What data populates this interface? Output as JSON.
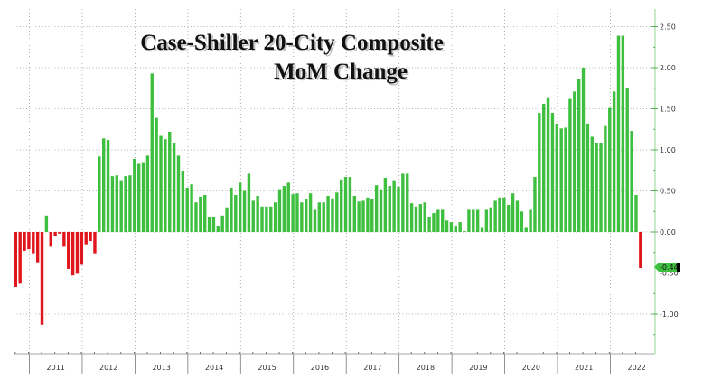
{
  "chart_data": {
    "type": "bar",
    "title": "Case-Shiller 20-City Composite",
    "subtitle": "MoM Change",
    "xlabel": "",
    "ylabel": "",
    "ylim": [
      -1.45,
      2.7
    ],
    "y_ticks": [
      "2.50",
      "2.00",
      "1.50",
      "1.00",
      "0.50",
      "0.00",
      "-0.50",
      "-1.00"
    ],
    "y_tick_values": [
      2.5,
      2.0,
      1.5,
      1.0,
      0.5,
      0.0,
      -0.5,
      -1.0
    ],
    "x_year_labels": [
      "2011",
      "2012",
      "2013",
      "2014",
      "2015",
      "2016",
      "2017",
      "2018",
      "2019",
      "2020",
      "2021",
      "2022"
    ],
    "grid": true,
    "axis_position": "right",
    "last_value_label": "-0.44",
    "colors": {
      "positive": "#3fbf3f",
      "negative": "#e0161d",
      "axis": "#b9e6b9",
      "grid": "#9a9a9a",
      "last_value_tag": "#3fbf3f"
    },
    "values": [
      -0.67,
      -0.63,
      -0.23,
      -0.21,
      -0.26,
      -0.37,
      -1.13,
      0.2,
      -0.18,
      -0.05,
      -0.02,
      -0.18,
      -0.45,
      -0.53,
      -0.51,
      -0.4,
      -0.15,
      -0.11,
      -0.26,
      0.92,
      1.14,
      1.12,
      0.68,
      0.69,
      0.62,
      0.68,
      0.69,
      0.89,
      0.83,
      0.84,
      0.93,
      1.93,
      1.39,
      1.17,
      1.13,
      1.22,
      1.08,
      0.93,
      0.74,
      0.54,
      0.58,
      0.36,
      0.43,
      0.45,
      0.18,
      0.18,
      0.07,
      0.2,
      0.3,
      0.54,
      0.45,
      0.6,
      0.5,
      0.71,
      0.38,
      0.44,
      0.31,
      0.31,
      0.31,
      0.36,
      0.51,
      0.56,
      0.6,
      0.46,
      0.47,
      0.36,
      0.4,
      0.47,
      0.27,
      0.36,
      0.36,
      0.44,
      0.41,
      0.48,
      0.64,
      0.67,
      0.67,
      0.44,
      0.37,
      0.38,
      0.42,
      0.4,
      0.57,
      0.51,
      0.66,
      0.56,
      0.62,
      0.55,
      0.71,
      0.71,
      0.35,
      0.31,
      0.34,
      0.36,
      0.18,
      0.23,
      0.27,
      0.27,
      0.14,
      0.12,
      0.07,
      0.12,
      0.01,
      0.27,
      0.27,
      0.27,
      0.05,
      0.27,
      0.3,
      0.38,
      0.42,
      0.42,
      0.33,
      0.47,
      0.38,
      0.25,
      0.05,
      0.27,
      0.67,
      1.45,
      1.56,
      1.63,
      1.45,
      1.32,
      1.26,
      1.27,
      1.62,
      1.71,
      1.86,
      2.0,
      1.32,
      1.16,
      1.08,
      1.08,
      1.29,
      1.51,
      1.71,
      2.39,
      2.39,
      1.75,
      1.23,
      0.45,
      -0.44
    ]
  }
}
